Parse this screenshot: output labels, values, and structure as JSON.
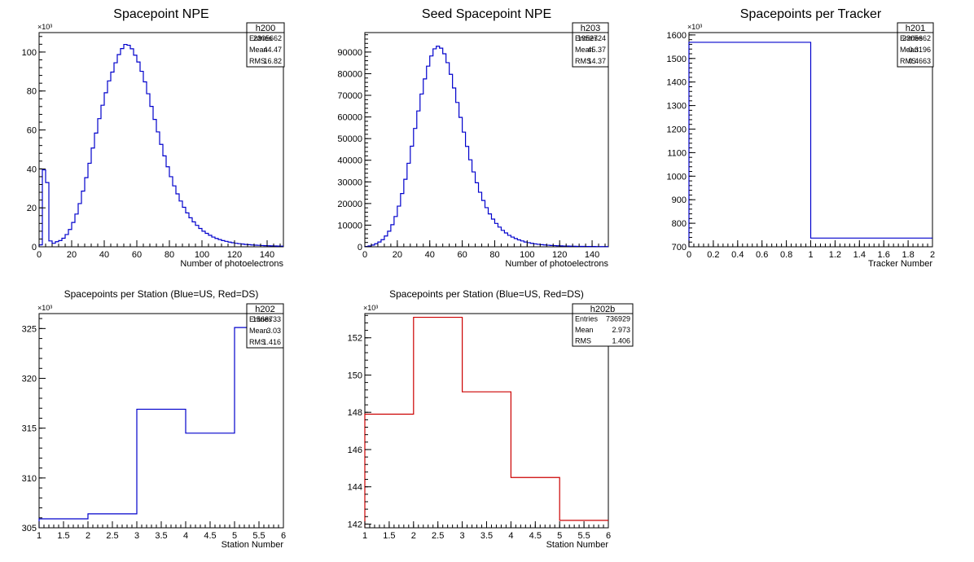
{
  "chart_data": [
    {
      "id": "h200",
      "type": "histogram",
      "title": "Spacepoint NPE",
      "xlabel": "Number of photoelectrons",
      "ylabel": "",
      "y_exponent": "×10³",
      "xlim": [
        0,
        150
      ],
      "ylim": [
        0,
        110
      ],
      "xticks": [
        0,
        20,
        40,
        60,
        80,
        100,
        120,
        140
      ],
      "yticks": [
        0,
        20,
        40,
        60,
        80,
        100
      ],
      "color": "#0000cc",
      "bin_width": 2,
      "bin_start": 0,
      "values": [
        1,
        39.5,
        33,
        3,
        1.8,
        2.6,
        3.2,
        4.4,
        6.3,
        8.9,
        12.5,
        16.8,
        22.2,
        28.6,
        35.5,
        42.9,
        50.7,
        58.4,
        65.8,
        72.7,
        79.1,
        85.2,
        89.7,
        94.5,
        98.7,
        101.8,
        103.9,
        103.5,
        101.7,
        98.4,
        94.9,
        90.1,
        84.7,
        78.6,
        72.1,
        65.4,
        59.0,
        52.6,
        46.7,
        41.1,
        36.0,
        31.3,
        27.2,
        23.5,
        20.3,
        17.4,
        14.9,
        12.8,
        11.0,
        9.4,
        8.0,
        6.9,
        5.9,
        5.0,
        4.3,
        3.7,
        3.2,
        2.8,
        2.4,
        2.1,
        1.8,
        1.6,
        1.4,
        1.2,
        1.1,
        0.95,
        0.85,
        0.75,
        0.66,
        0.58,
        0.52,
        0.46,
        0.41,
        0.37,
        0.33
      ],
      "stats": {
        "name": "h200",
        "rows": [
          [
            "Entries",
            "2305662"
          ],
          [
            "Mean",
            "44.47"
          ],
          [
            "RMS",
            "16.82"
          ]
        ]
      }
    },
    {
      "id": "h203",
      "type": "histogram",
      "title": "Seed Spacepoint NPE",
      "xlabel": "Number of photoelectrons",
      "ylabel": "",
      "y_exponent": "",
      "xlim": [
        0,
        150
      ],
      "ylim": [
        0,
        99000
      ],
      "xticks": [
        0,
        20,
        40,
        60,
        80,
        100,
        120,
        140
      ],
      "yticks": [
        0,
        10000,
        20000,
        30000,
        40000,
        50000,
        60000,
        70000,
        80000,
        90000
      ],
      "color": "#0000cc",
      "bin_width": 2,
      "bin_start": 0,
      "values": [
        150,
        400,
        800,
        1400,
        2200,
        3300,
        5000,
        7200,
        10200,
        14000,
        18800,
        24600,
        31200,
        38600,
        46500,
        54700,
        62800,
        70600,
        77600,
        83500,
        88200,
        91500,
        92700,
        91800,
        89200,
        85100,
        79700,
        73400,
        66700,
        59800,
        53000,
        46400,
        40200,
        34600,
        29600,
        25200,
        21400,
        18100,
        15200,
        12800,
        10800,
        9100,
        7600,
        6400,
        5300,
        4500,
        3800,
        3200,
        2700,
        2200,
        1900,
        1600,
        1350,
        1150,
        980,
        840,
        720,
        620,
        540,
        470,
        410,
        360,
        320,
        280,
        250,
        220,
        200,
        180,
        160,
        145,
        130,
        118,
        107,
        97,
        88
      ],
      "stats": {
        "name": "h203",
        "rows": [
          [
            "Entries",
            "1952724"
          ],
          [
            "Mean",
            "45.37"
          ],
          [
            "RMS",
            "14.37"
          ]
        ]
      }
    },
    {
      "id": "h201",
      "type": "histogram",
      "title": "Spacepoints per Tracker",
      "xlabel": "Tracker Number",
      "ylabel": "",
      "y_exponent": "×10³",
      "xlim": [
        0,
        2
      ],
      "ylim": [
        700,
        1610
      ],
      "xticks": [
        0,
        0.2,
        0.4,
        0.6,
        0.8,
        1,
        1.2,
        1.4,
        1.6,
        1.8,
        2
      ],
      "yticks": [
        700,
        800,
        900,
        1000,
        1100,
        1200,
        1300,
        1400,
        1500,
        1600
      ],
      "color": "#0000cc",
      "bin_width": 1,
      "bin_start": 0,
      "values": [
        1568.7,
        736.9
      ],
      "stats": {
        "name": "h201",
        "rows": [
          [
            "Entries",
            "2305662"
          ],
          [
            "Mean",
            "0.3196"
          ],
          [
            "RMS",
            "0.4663"
          ]
        ]
      }
    },
    {
      "id": "h202",
      "type": "histogram",
      "title": "Spacepoints per Station (Blue=US, Red=DS)",
      "xlabel": "Station Number",
      "ylabel": "",
      "y_exponent": "×10³",
      "xlim": [
        1,
        6
      ],
      "ylim": [
        305,
        326.5
      ],
      "xticks": [
        1,
        1.5,
        2,
        2.5,
        3,
        3.5,
        4,
        4.5,
        5,
        5.5,
        6
      ],
      "yticks": [
        305,
        310,
        315,
        320,
        325
      ],
      "color": "#0000cc",
      "bin_width": 1,
      "bin_start": 1,
      "values": [
        305.9,
        306.4,
        316.9,
        314.5,
        325.1
      ],
      "stats": {
        "name": "h202",
        "rows": [
          [
            "Entries",
            "1568733"
          ],
          [
            "Mean",
            "3.03"
          ],
          [
            "RMS",
            "1.416"
          ]
        ]
      }
    },
    {
      "id": "h202b",
      "type": "histogram",
      "title": "Spacepoints per Station (Blue=US, Red=DS)",
      "xlabel": "Station Number",
      "ylabel": "",
      "y_exponent": "×10³",
      "xlim": [
        1,
        6
      ],
      "ylim": [
        141.8,
        153.3
      ],
      "xticks": [
        1,
        1.5,
        2,
        2.5,
        3,
        3.5,
        4,
        4.5,
        5,
        5.5,
        6
      ],
      "yticks": [
        142,
        144,
        146,
        148,
        150,
        152
      ],
      "color": "#cc0000",
      "bin_width": 1,
      "bin_start": 1,
      "values": [
        147.9,
        153.1,
        149.1,
        144.5,
        142.2
      ],
      "stats": {
        "name": "h202b",
        "rows": [
          [
            "Entries",
            "736929"
          ],
          [
            "Mean",
            "2.973"
          ],
          [
            "RMS",
            "1.406"
          ]
        ]
      }
    }
  ]
}
